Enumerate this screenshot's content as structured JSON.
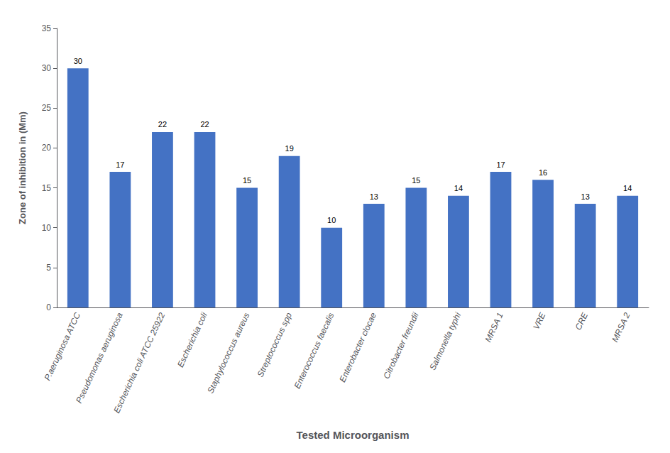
{
  "chart_data": {
    "type": "bar",
    "categories": [
      "P.aeruginosa ATCC",
      "Pseudomonas aeruginosa",
      "Escherichia coli ATCC 25922",
      "Escherichia coli",
      "Staphylococcus aureus",
      "Streptococcus spp",
      "Enterococcus faecalis",
      "Enterobacter clocae",
      "Citrobacter freundii",
      "Salmonella typhi",
      "MRSA 1",
      "VRE",
      "CRE",
      "MRSA 2"
    ],
    "values": [
      30,
      17,
      22,
      22,
      15,
      19,
      10,
      13,
      15,
      14,
      17,
      16,
      13,
      14
    ],
    "color": "#4472C4",
    "xlabel": "Tested Microorganism",
    "ylabel": "Zone of inhibition in (Mm)",
    "ylim": [
      0,
      35
    ],
    "yticks": [
      0,
      5,
      10,
      15,
      20,
      25,
      30,
      35
    ],
    "grid": false,
    "data_labels": true
  }
}
